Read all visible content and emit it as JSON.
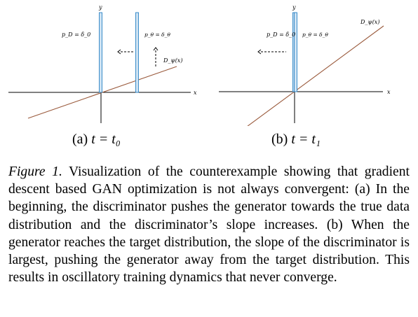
{
  "panel_a": {
    "axis_y": "y",
    "axis_x": "x",
    "label_pd": "p_D = δ_0",
    "label_ptheta": "p_θ = δ_θ",
    "label_disc": "D_ψ(x)",
    "subcaption_prefix": "(a) ",
    "subcaption_math": "t = t₀"
  },
  "panel_b": {
    "axis_y": "y",
    "axis_x": "x",
    "label_pd": "p_D = δ_0",
    "label_ptheta": "p_θ = δ_θ",
    "label_disc": "D_ψ(x)",
    "subcaption_prefix": "(b) ",
    "subcaption_math": "t = t₁"
  },
  "caption": {
    "label": "Figure 1.",
    "text": "Visualization of the counterexample showing that gradient descent based GAN optimization is not always convergent: (a) In the beginning, the discriminator pushes the generator towards the true data distribution and the discriminator’s slope increases. (b) When the generator reaches the target distribution, the slope of the discriminator is largest, pushing the generator away from the target distribution. This results in oscillatory training dynamics that never converge."
  },
  "colors": {
    "bar_fill": "#cfe3f3",
    "bar_stroke": "#2b83c6",
    "disc_line": "#9a5a3c"
  }
}
